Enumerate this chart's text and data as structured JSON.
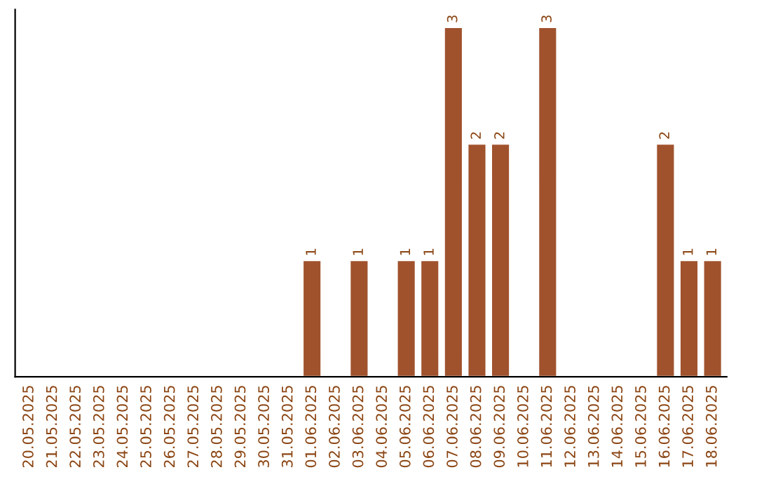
{
  "chart_data": {
    "type": "bar",
    "categories": [
      "20.05.2025",
      "21.05.2025",
      "22.05.2025",
      "23.05.2025",
      "24.05.2025",
      "25.05.2025",
      "26.05.2025",
      "27.05.2025",
      "28.05.2025",
      "29.05.2025",
      "30.05.2025",
      "31.05.2025",
      "01.06.2025",
      "02.06.2025",
      "03.06.2025",
      "04.06.2025",
      "05.06.2025",
      "06.06.2025",
      "07.06.2025",
      "08.06.2025",
      "09.06.2025",
      "10.06.2025",
      "11.06.2025",
      "12.06.2025",
      "13.06.2025",
      "14.06.2025",
      "15.06.2025",
      "16.06.2025",
      "17.06.2025",
      "18.06.2025"
    ],
    "values": [
      null,
      null,
      null,
      null,
      null,
      null,
      null,
      null,
      null,
      null,
      null,
      null,
      1,
      null,
      1,
      null,
      1,
      1,
      3,
      2,
      2,
      null,
      3,
      null,
      null,
      null,
      null,
      2,
      1,
      1
    ],
    "data_labels": true,
    "color": "#a0522d",
    "tick_labels": "x",
    "grid": false
  }
}
